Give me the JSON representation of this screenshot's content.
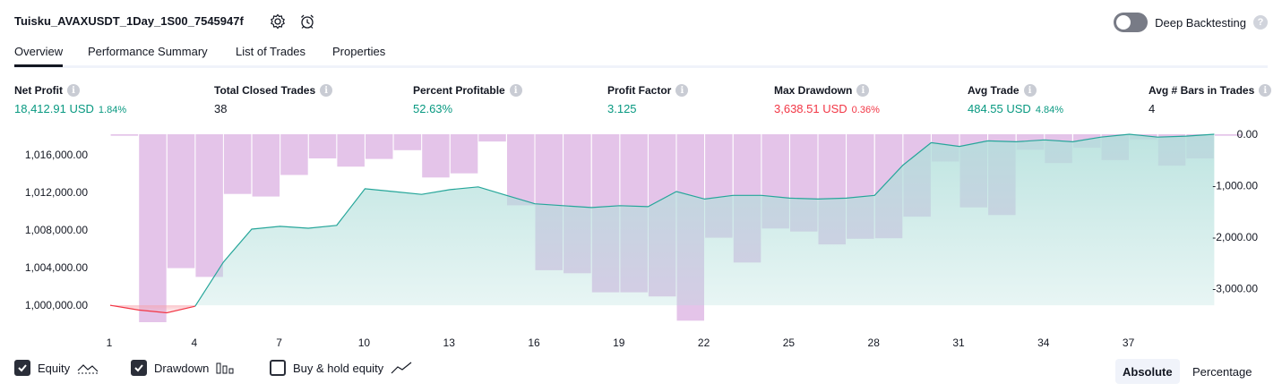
{
  "header": {
    "strategy_name": "Tuisku_AVAXUSDT_1Day_1S00_7545947f",
    "deep_backtesting_label": "Deep Backtesting",
    "help_glyph": "?"
  },
  "tabs": [
    {
      "label": "Overview",
      "active": true
    },
    {
      "label": "Performance Summary",
      "active": false
    },
    {
      "label": "List of Trades",
      "active": false
    },
    {
      "label": "Properties",
      "active": false
    }
  ],
  "metrics": [
    {
      "label": "Net Profit",
      "value": "18,412.91 USD",
      "pct": "1.84%",
      "tone": "green"
    },
    {
      "label": "Total Closed Trades",
      "value": "38",
      "pct": "",
      "tone": "black"
    },
    {
      "label": "Percent Profitable",
      "value": "52.63%",
      "pct": "",
      "tone": "green"
    },
    {
      "label": "Profit Factor",
      "value": "3.125",
      "pct": "",
      "tone": "green"
    },
    {
      "label": "Max Drawdown",
      "value": "3,638.51 USD",
      "pct": "0.36%",
      "tone": "red"
    },
    {
      "label": "Avg Trade",
      "value": "484.55 USD",
      "pct": "4.84%",
      "tone": "green"
    },
    {
      "label": "Avg # Bars in Trades",
      "value": "4",
      "pct": "",
      "tone": "black"
    }
  ],
  "info_glyph": "i",
  "chart_data": {
    "type": "line",
    "x": [
      1,
      2,
      3,
      4,
      5,
      6,
      7,
      8,
      9,
      10,
      11,
      12,
      13,
      14,
      15,
      16,
      17,
      18,
      19,
      20,
      21,
      22,
      23,
      24,
      25,
      26,
      27,
      28,
      29,
      30,
      31,
      32,
      33,
      34,
      35,
      36,
      37,
      38,
      39,
      40
    ],
    "x_ticks": [
      "1",
      "4",
      "7",
      "10",
      "13",
      "16",
      "19",
      "22",
      "25",
      "28",
      "31",
      "34",
      "37"
    ],
    "x_tick_values": [
      1,
      4,
      7,
      10,
      13,
      16,
      19,
      22,
      25,
      28,
      31,
      34,
      37
    ],
    "left_axis": {
      "ticks": [
        "1,000,000.00",
        "1,004,000.00",
        "1,008,000.00",
        "1,012,000.00",
        "1,016,000.00"
      ],
      "tick_values": [
        1000000,
        1004000,
        1008000,
        1012000,
        1016000
      ],
      "range": [
        998200,
        1018200
      ]
    },
    "right_axis": {
      "ticks": [
        "0.00",
        "-1,000.00",
        "-2,000.00",
        "-3,000.00"
      ],
      "tick_values": [
        0,
        -1000,
        -2000,
        -3000
      ],
      "range": [
        -3650,
        0
      ]
    },
    "series": [
      {
        "name": "Equity",
        "values": [
          1000000,
          999500,
          999200,
          999900,
          1004600,
          1008100,
          1008400,
          1008200,
          1008500,
          1012400,
          1012100,
          1011800,
          1012300,
          1012600,
          1011700,
          1010800,
          1010600,
          1010400,
          1010600,
          1010500,
          1012100,
          1011300,
          1011700,
          1011700,
          1011400,
          1011300,
          1011400,
          1011700,
          1014900,
          1017300,
          1016900,
          1017500,
          1017400,
          1017600,
          1017400,
          1017900,
          1018200,
          1017900,
          1018000,
          1018200
        ],
        "color": "#089981"
      },
      {
        "name": "Drawdown",
        "values": [
          -30,
          -3650,
          -2600,
          -2770,
          -1160,
          -1210,
          -790,
          -470,
          -630,
          -480,
          -310,
          -840,
          -760,
          -140,
          -1380,
          -2640,
          -2700,
          -3070,
          -3070,
          -3150,
          -3620,
          -2010,
          -2490,
          -1830,
          -1890,
          -2140,
          -2030,
          -2020,
          -1600,
          -530,
          -1420,
          -1570,
          -300,
          -560,
          -260,
          -500,
          -100,
          -610,
          -470,
          -30
        ],
        "color": "#ce93d8"
      }
    ],
    "colors": {
      "equity_line": "#26a69a",
      "equity_fill": "#b2dfdb",
      "loss_line": "#f23645",
      "drawdown_bar": "#e1bee7"
    }
  },
  "legend": [
    {
      "label": "Equity",
      "checked": true,
      "icon": "equity-line-icon"
    },
    {
      "label": "Drawdown",
      "checked": true,
      "icon": "drawdown-bars-icon"
    },
    {
      "label": "Buy & hold equity",
      "checked": false,
      "icon": "buy-hold-line-icon"
    }
  ],
  "mode": {
    "absolute_label": "Absolute",
    "percentage_label": "Percentage",
    "selected": "Absolute"
  }
}
